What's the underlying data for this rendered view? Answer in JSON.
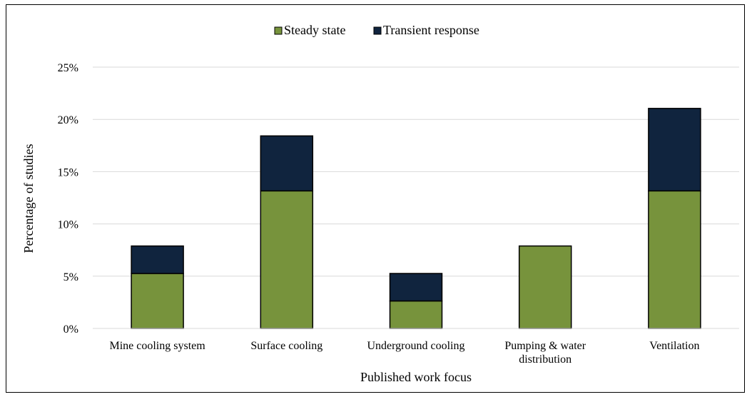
{
  "chart_data": {
    "type": "bar",
    "stacked": true,
    "categories": [
      [
        "Mine cooling system"
      ],
      [
        "Surface cooling"
      ],
      [
        "Underground cooling"
      ],
      [
        "Pumping & water",
        "distribution"
      ],
      [
        "Ventilation"
      ]
    ],
    "series": [
      {
        "name": "Steady state",
        "color": "#77933c",
        "values": [
          5.26,
          13.16,
          2.63,
          7.89,
          13.16
        ]
      },
      {
        "name": "Transient response",
        "color": "#10243e",
        "values": [
          2.63,
          5.26,
          2.63,
          0,
          7.89
        ]
      }
    ],
    "xlabel": "Published work focus",
    "ylabel": "Percentage of studies",
    "ylim": [
      0,
      25
    ],
    "yticks": [
      "0%",
      "5%",
      "10%",
      "15%",
      "20%",
      "25%"
    ],
    "grid": true,
    "legend_position": "top"
  }
}
